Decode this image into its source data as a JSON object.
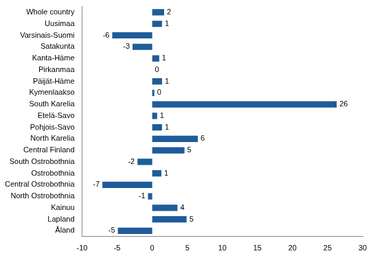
{
  "chart_data": {
    "type": "bar",
    "orientation": "horizontal",
    "categories": [
      "Whole country",
      "Uusimaa",
      "Varsinais-Suomi",
      "Satakunta",
      "Kanta-Häme",
      "Pirkanmaa",
      "Päijät-Häme",
      "Kymenlaakso",
      "South Karelia",
      "Etelä-Savo",
      "Pohjois-Savo",
      "North Karelia",
      "Central Finland",
      "South Ostrobothnia",
      "Ostrobothnia",
      "Central Ostrobothnia",
      "North Ostrobothnia",
      "Kainuu",
      "Lapland",
      "Åland"
    ],
    "values": [
      1.7,
      1.4,
      -5.7,
      -2.8,
      1.0,
      0,
      1.4,
      0.3,
      26.3,
      0.7,
      1.4,
      6.5,
      4.6,
      -2.1,
      1.3,
      -7.1,
      -0.6,
      3.6,
      4.9,
      -4.9
    ],
    "value_labels": [
      "2",
      "1",
      "-6",
      "-3",
      "1",
      "0",
      "1",
      "0",
      "26",
      "1",
      "1",
      "6",
      "5",
      "-2",
      "1",
      "-7",
      "-1",
      "4",
      "5",
      "-5"
    ],
    "data_labels": true,
    "color": "#1f5c99",
    "xlim": [
      -10,
      30
    ],
    "xticks": [
      -10,
      -5,
      0,
      5,
      10,
      15,
      20,
      25,
      30
    ],
    "grid": false
  }
}
